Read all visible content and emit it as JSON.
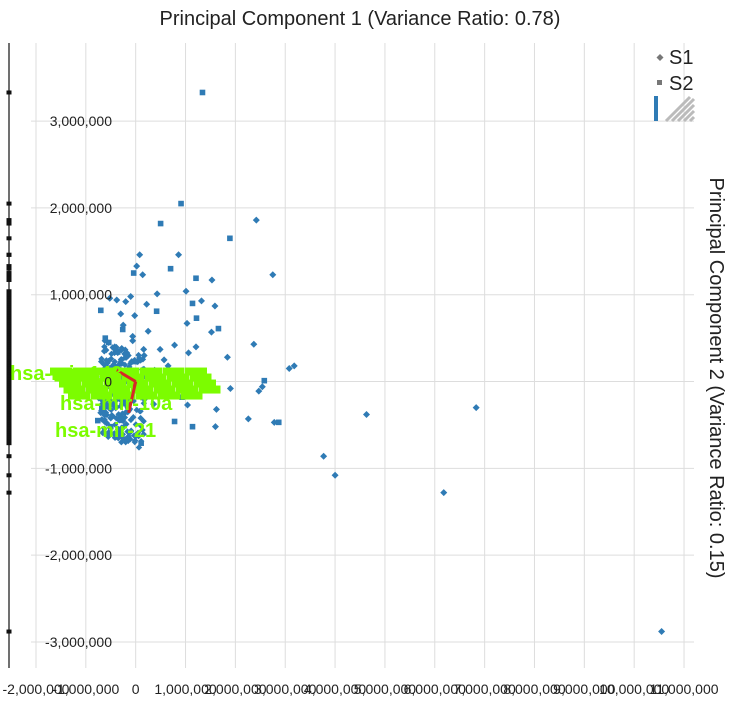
{
  "chart_data": {
    "type": "scatter",
    "title": "Principal Component 1 (Variance Ratio: 0.78)",
    "xlabel": "",
    "ylabel": "Principal Component 2 (Variance Ratio: 0.15)",
    "xlim": [
      -2100000,
      11200000
    ],
    "ylim": [
      -3300000,
      3900000
    ],
    "x_ticks": [
      {
        "value": -2000000,
        "label": "-2,000,000"
      },
      {
        "value": -1000000,
        "label": "-1,000,000"
      },
      {
        "value": 0,
        "label": "0"
      },
      {
        "value": 1000000,
        "label": "1,000,000"
      },
      {
        "value": 2000000,
        "label": "2,000,000"
      },
      {
        "value": 3000000,
        "label": "3,000,000"
      },
      {
        "value": 4000000,
        "label": "4,000,000"
      },
      {
        "value": 5000000,
        "label": "5,000,000"
      },
      {
        "value": 6000000,
        "label": "6,000,000"
      },
      {
        "value": 7000000,
        "label": "7,000,000"
      },
      {
        "value": 8000000,
        "label": "8,000,000"
      },
      {
        "value": 9000000,
        "label": "9,000,000"
      },
      {
        "value": 10000000,
        "label": "10,000,000"
      },
      {
        "value": 11000000,
        "label": "11,000,000"
      }
    ],
    "y_ticks": [
      {
        "value": 3000000,
        "label": "3,000,000"
      },
      {
        "value": 2000000,
        "label": "2,000,000"
      },
      {
        "value": 1000000,
        "label": "1,000,000"
      },
      {
        "value": 0,
        "label": "0"
      },
      {
        "value": -1000000,
        "label": "-1,000,000"
      },
      {
        "value": -2000000,
        "label": "-2,000,000"
      },
      {
        "value": -3000000,
        "label": "-3,000,000"
      }
    ],
    "grid": true,
    "legend_position": "top-right",
    "series": [
      {
        "name": "S1",
        "marker": "diamond",
        "color": "#2f7bb5",
        "points": [
          [
            10550000,
            -2880000
          ],
          [
            6830000,
            -300000
          ],
          [
            6180000,
            -1280000
          ],
          [
            4630000,
            -380000
          ],
          [
            4000000,
            -1080000
          ],
          [
            3770000,
            -860000
          ],
          [
            3180000,
            180000
          ],
          [
            3080000,
            150000
          ],
          [
            2750000,
            1230000
          ],
          [
            2780000,
            -470000
          ],
          [
            2420000,
            1860000
          ],
          [
            2370000,
            430000
          ],
          [
            2260000,
            -430000
          ],
          [
            2540000,
            -60000
          ],
          [
            2470000,
            -110000
          ],
          [
            1900000,
            -80000
          ],
          [
            1840000,
            280000
          ],
          [
            1620000,
            -320000
          ],
          [
            1600000,
            -520000
          ],
          [
            1530000,
            1170000
          ],
          [
            1590000,
            870000
          ],
          [
            1520000,
            570000
          ],
          [
            1320000,
            930000
          ],
          [
            1210000,
            400000
          ],
          [
            1010000,
            1040000
          ],
          [
            1030000,
            670000
          ],
          [
            1040000,
            -270000
          ],
          [
            1060000,
            330000
          ],
          [
            860000,
            1460000
          ],
          [
            780000,
            420000
          ],
          [
            570000,
            250000
          ],
          [
            490000,
            370000
          ],
          [
            430000,
            1010000
          ],
          [
            360000,
            -260000
          ],
          [
            250000,
            580000
          ],
          [
            220000,
            890000
          ],
          [
            170000,
            300000
          ],
          [
            140000,
            1230000
          ],
          [
            80000,
            1460000
          ],
          [
            20000,
            1330000
          ],
          [
            -20000,
            760000
          ],
          [
            -60000,
            520000
          ],
          [
            -100000,
            980000
          ],
          [
            -150000,
            300000
          ],
          [
            -200000,
            920000
          ],
          [
            -250000,
            650000
          ],
          [
            -300000,
            780000
          ],
          [
            -380000,
            940000
          ],
          [
            -420000,
            400000
          ],
          [
            -520000,
            960000
          ],
          [
            -80000,
            230000
          ],
          [
            -150000,
            -680000
          ],
          [
            -250000,
            -530000
          ],
          [
            -350000,
            -550000
          ],
          [
            -430000,
            -600000
          ],
          [
            -500000,
            -420000
          ],
          [
            -580000,
            -480000
          ],
          [
            -660000,
            -590000
          ],
          [
            -700000,
            -360000
          ],
          [
            -600000,
            -290000
          ],
          [
            -520000,
            -220000
          ],
          [
            -450000,
            -140000
          ],
          [
            -390000,
            -100000
          ],
          [
            -330000,
            150000
          ],
          [
            -280000,
            210000
          ],
          [
            -220000,
            -220000
          ],
          [
            -160000,
            -350000
          ],
          [
            -110000,
            -150000
          ],
          [
            -60000,
            470000
          ],
          [
            -10000,
            -60000
          ],
          [
            40000,
            230000
          ],
          [
            110000,
            -180000
          ],
          [
            160000,
            370000
          ],
          [
            300000,
            80000
          ],
          [
            380000,
            130000
          ],
          [
            480000,
            -60000
          ],
          [
            650000,
            180000
          ],
          [
            720000,
            -110000
          ],
          [
            -620000,
            150000
          ],
          [
            -740000,
            -190000
          ]
        ]
      },
      {
        "name": "S2",
        "marker": "square",
        "color": "#2f7bb5",
        "points": [
          [
            1340000,
            3330000
          ],
          [
            910000,
            2050000
          ],
          [
            1890000,
            1650000
          ],
          [
            500000,
            1820000
          ],
          [
            1210000,
            1190000
          ],
          [
            700000,
            1300000
          ],
          [
            -40000,
            1250000
          ],
          [
            1220000,
            730000
          ],
          [
            420000,
            810000
          ],
          [
            1660000,
            610000
          ],
          [
            -10000,
            230000
          ],
          [
            1140000,
            900000
          ],
          [
            2580000,
            10000
          ],
          [
            2870000,
            -470000
          ],
          [
            1140000,
            -520000
          ],
          [
            780000,
            -460000
          ],
          [
            110000,
            -710000
          ],
          [
            930000,
            -180000
          ],
          [
            1240000,
            90000
          ],
          [
            -260000,
            600000
          ],
          [
            -610000,
            500000
          ],
          [
            -700000,
            820000
          ],
          [
            -540000,
            450000
          ],
          [
            -360000,
            340000
          ],
          [
            -680000,
            -300000
          ],
          [
            -500000,
            -520000
          ],
          [
            -300000,
            -400000
          ],
          [
            -760000,
            -450000
          ],
          [
            -200000,
            60000
          ],
          [
            40000,
            -40000
          ]
        ]
      }
    ],
    "loadings": [
      {
        "label": "hsa-mir-143",
        "x": -380000,
        "y": 130000
      },
      {
        "label": "hsa-mir-10a",
        "x": -30000,
        "y": -60000
      },
      {
        "label": "hsa-mir-21",
        "x": -140000,
        "y": -360000
      }
    ],
    "loading_color": "#d62728",
    "annotation_color": "#7cfc00",
    "left_rug_color": "#111111"
  }
}
